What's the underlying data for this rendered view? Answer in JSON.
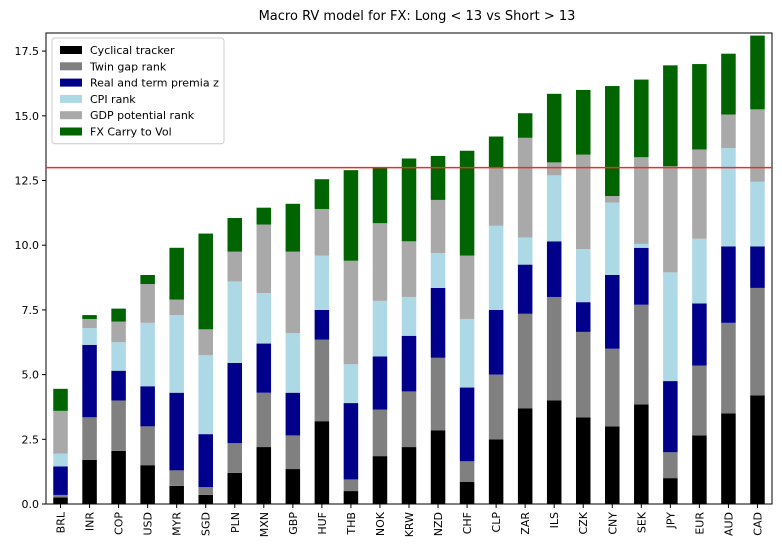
{
  "chart_data": {
    "type": "bar",
    "stacked": true,
    "title": "Macro RV model for FX: Long < 13 vs Short > 13",
    "xlabel": "",
    "ylabel": "",
    "ylim": [
      0,
      18.2
    ],
    "yticks": [
      0.0,
      2.5,
      5.0,
      7.5,
      10.0,
      12.5,
      15.0,
      17.5
    ],
    "ytick_labels": [
      "0.0",
      "2.5",
      "5.0",
      "7.5",
      "10.0",
      "12.5",
      "15.0",
      "17.5"
    ],
    "threshold": 13,
    "threshold_color": "#e8302a",
    "legend_position": "top-left",
    "grid": false,
    "categories": [
      "BRL",
      "INR",
      "COP",
      "USD",
      "MYR",
      "SGD",
      "PLN",
      "MXN",
      "GBP",
      "HUF",
      "THB",
      "NOK",
      "KRW",
      "NZD",
      "CHF",
      "CLP",
      "ZAR",
      "ILS",
      "CZK",
      "CNY",
      "SEK",
      "JPY",
      "EUR",
      "AUD",
      "CAD"
    ],
    "series": [
      {
        "name": "Cyclical tracker",
        "color": "#000000",
        "values": [
          0.25,
          1.7,
          2.05,
          1.5,
          0.7,
          0.35,
          1.2,
          2.2,
          1.35,
          3.2,
          0.5,
          1.85,
          2.2,
          2.85,
          0.85,
          2.5,
          3.7,
          4.0,
          3.35,
          3.0,
          3.85,
          1.0,
          2.65,
          3.5,
          4.2
        ]
      },
      {
        "name": "Twin gap rank",
        "color": "#808080",
        "values": [
          0.1,
          1.65,
          1.95,
          1.5,
          0.6,
          0.3,
          1.15,
          2.1,
          1.3,
          3.15,
          0.45,
          1.8,
          2.15,
          2.8,
          0.8,
          2.5,
          3.65,
          4.0,
          3.3,
          3.0,
          3.85,
          1.0,
          2.7,
          3.5,
          4.15
        ]
      },
      {
        "name": "Real and term premia z",
        "color": "#00008b",
        "values": [
          1.1,
          2.8,
          1.15,
          1.55,
          3.0,
          2.05,
          3.1,
          1.9,
          1.65,
          1.15,
          2.95,
          2.05,
          2.15,
          2.7,
          2.85,
          2.5,
          1.9,
          2.15,
          1.15,
          2.85,
          2.2,
          2.75,
          2.4,
          2.95,
          1.6
        ]
      },
      {
        "name": "CPI rank",
        "color": "#add8e6",
        "values": [
          0.5,
          0.65,
          1.1,
          2.45,
          3.0,
          3.05,
          3.15,
          1.95,
          2.3,
          2.1,
          1.5,
          2.15,
          1.5,
          1.35,
          2.65,
          3.25,
          1.05,
          2.55,
          2.05,
          2.8,
          0.15,
          4.2,
          2.5,
          3.8,
          2.5
        ]
      },
      {
        "name": "GDP potential rank",
        "color": "#a9a9a9",
        "values": [
          1.65,
          0.35,
          0.8,
          1.5,
          0.6,
          1.0,
          1.15,
          2.65,
          3.15,
          1.8,
          4.0,
          3.0,
          2.15,
          2.05,
          2.45,
          2.25,
          3.85,
          0.5,
          3.65,
          0.25,
          3.35,
          4.1,
          3.45,
          1.3,
          2.8
        ]
      },
      {
        "name": "FX Carry to Vol",
        "color": "#006400",
        "values": [
          0.85,
          0.15,
          0.5,
          0.35,
          2.0,
          3.7,
          1.3,
          0.65,
          1.85,
          1.15,
          3.5,
          2.15,
          3.2,
          1.7,
          4.05,
          1.2,
          0.95,
          2.65,
          2.5,
          4.25,
          3.0,
          3.9,
          3.3,
          2.35,
          2.85
        ]
      }
    ]
  }
}
